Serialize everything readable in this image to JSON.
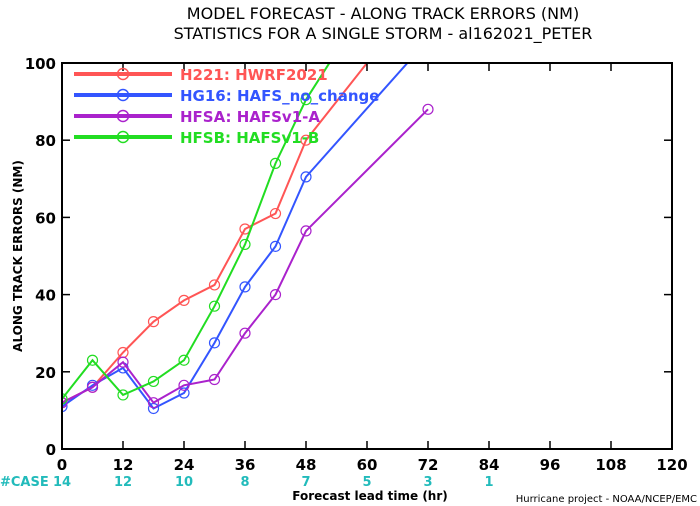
{
  "chart_data": {
    "type": "line",
    "title": "MODEL FORECAST - ALONG TRACK ERRORS (NM)",
    "subtitle": "STATISTICS FOR A SINGLE STORM - al162021_PETER",
    "xlabel": "Forecast lead time (hr)",
    "ylabel": "ALONG TRACK ERRORS (NM)",
    "xlim": [
      0,
      120
    ],
    "ylim": [
      0,
      100
    ],
    "xticks": [
      0,
      12,
      24,
      36,
      48,
      60,
      72,
      84,
      96,
      108,
      120
    ],
    "yticks": [
      0,
      20,
      40,
      60,
      80,
      100
    ],
    "legend_position": "top-left",
    "series": [
      {
        "name": "H221: HWRF2021",
        "color": "#ff5555",
        "x": [
          0,
          6,
          12,
          18,
          24,
          30,
          36,
          42,
          48,
          72
        ],
        "y": [
          12,
          16,
          25,
          33,
          38.5,
          42.5,
          57,
          61,
          80,
          120
        ]
      },
      {
        "name": "HG16: HAFS_no_change",
        "color": "#3355ff",
        "x": [
          0,
          6,
          12,
          18,
          24,
          30,
          36,
          42,
          48,
          72
        ],
        "y": [
          11,
          16.5,
          21,
          10.5,
          14.5,
          27.5,
          42,
          52.5,
          70.5,
          106
        ]
      },
      {
        "name": "HFSA: HAFSv1-A",
        "color": "#aa22cc",
        "x": [
          0,
          6,
          12,
          18,
          24,
          30,
          36,
          42,
          48,
          72
        ],
        "y": [
          12,
          16,
          22.5,
          12,
          16.5,
          18,
          30,
          40,
          56.5,
          88
        ]
      },
      {
        "name": "HFSB: HAFSv1-B",
        "color": "#22dd22",
        "x": [
          0,
          6,
          12,
          18,
          24,
          30,
          36,
          42,
          48,
          72
        ],
        "y": [
          13,
          23,
          14,
          17.5,
          23,
          37,
          53,
          74,
          90.5,
          140
        ]
      }
    ],
    "case_label": "#CASE",
    "cases": [
      {
        "x": 0,
        "n": "14"
      },
      {
        "x": 12,
        "n": "12"
      },
      {
        "x": 24,
        "n": "10"
      },
      {
        "x": 36,
        "n": "8"
      },
      {
        "x": 48,
        "n": "7"
      },
      {
        "x": 60,
        "n": "5"
      },
      {
        "x": 72,
        "n": "3"
      },
      {
        "x": 84,
        "n": "1"
      }
    ],
    "credit": "Hurricane project - NOAA/NCEP/EMC"
  }
}
